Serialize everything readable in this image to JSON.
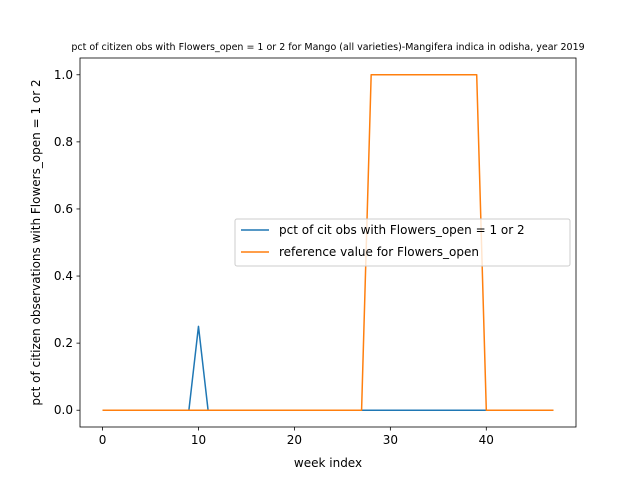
{
  "chart_data": {
    "type": "line",
    "title": "pct of citizen obs with Flowers_open = 1 or 2 for Mango (all varieties)-Mangifera indica in odisha, year 2019",
    "xlabel": "week index",
    "ylabel": "pct of citizen observations with Flowers_open = 1 or 2",
    "xlim": [
      -2.35,
      49.35
    ],
    "ylim": [
      -0.05,
      1.05
    ],
    "xticks": [
      0,
      10,
      20,
      30,
      40
    ],
    "yticks": [
      0.0,
      0.2,
      0.4,
      0.6,
      0.8,
      1.0
    ],
    "xtick_labels": [
      "0",
      "10",
      "20",
      "30",
      "40"
    ],
    "ytick_labels": [
      "0.0",
      "0.2",
      "0.4",
      "0.6",
      "0.8",
      "1.0"
    ],
    "legend_position": "center-right",
    "series": [
      {
        "name": "pct of cit obs with Flowers_open = 1 or 2",
        "color": "#1f77b4",
        "x": [
          0,
          1,
          2,
          3,
          4,
          5,
          6,
          7,
          8,
          9,
          10,
          11,
          12,
          13,
          14,
          15,
          16,
          17,
          18,
          19,
          20,
          21,
          22,
          23,
          24,
          25,
          26,
          27,
          28,
          29,
          30,
          31,
          32,
          33,
          34,
          35,
          36,
          37,
          38,
          39,
          40,
          41,
          42,
          43,
          44,
          45,
          46,
          47
        ],
        "values": [
          0,
          0,
          0,
          0,
          0,
          0,
          0,
          0,
          0,
          0,
          0.25,
          0,
          0,
          0,
          0,
          0,
          0,
          0,
          0,
          0,
          0,
          0,
          0,
          0,
          0,
          0,
          0,
          0,
          0,
          0,
          0,
          0,
          0,
          0,
          0,
          0,
          0,
          0,
          0,
          0,
          0,
          0,
          0,
          0,
          0,
          0,
          0,
          0
        ]
      },
      {
        "name": "reference value for Flowers_open",
        "color": "#ff7f0e",
        "x": [
          0,
          1,
          2,
          3,
          4,
          5,
          6,
          7,
          8,
          9,
          10,
          11,
          12,
          13,
          14,
          15,
          16,
          17,
          18,
          19,
          20,
          21,
          22,
          23,
          24,
          25,
          26,
          27,
          28,
          29,
          30,
          31,
          32,
          33,
          34,
          35,
          36,
          37,
          38,
          39,
          40,
          41,
          42,
          43,
          44,
          45,
          46,
          47
        ],
        "values": [
          0,
          0,
          0,
          0,
          0,
          0,
          0,
          0,
          0,
          0,
          0,
          0,
          0,
          0,
          0,
          0,
          0,
          0,
          0,
          0,
          0,
          0,
          0,
          0,
          0,
          0,
          0,
          0,
          1,
          1,
          1,
          1,
          1,
          1,
          1,
          1,
          1,
          1,
          1,
          1,
          0,
          0,
          0,
          0,
          0,
          0,
          0,
          0
        ]
      }
    ]
  }
}
